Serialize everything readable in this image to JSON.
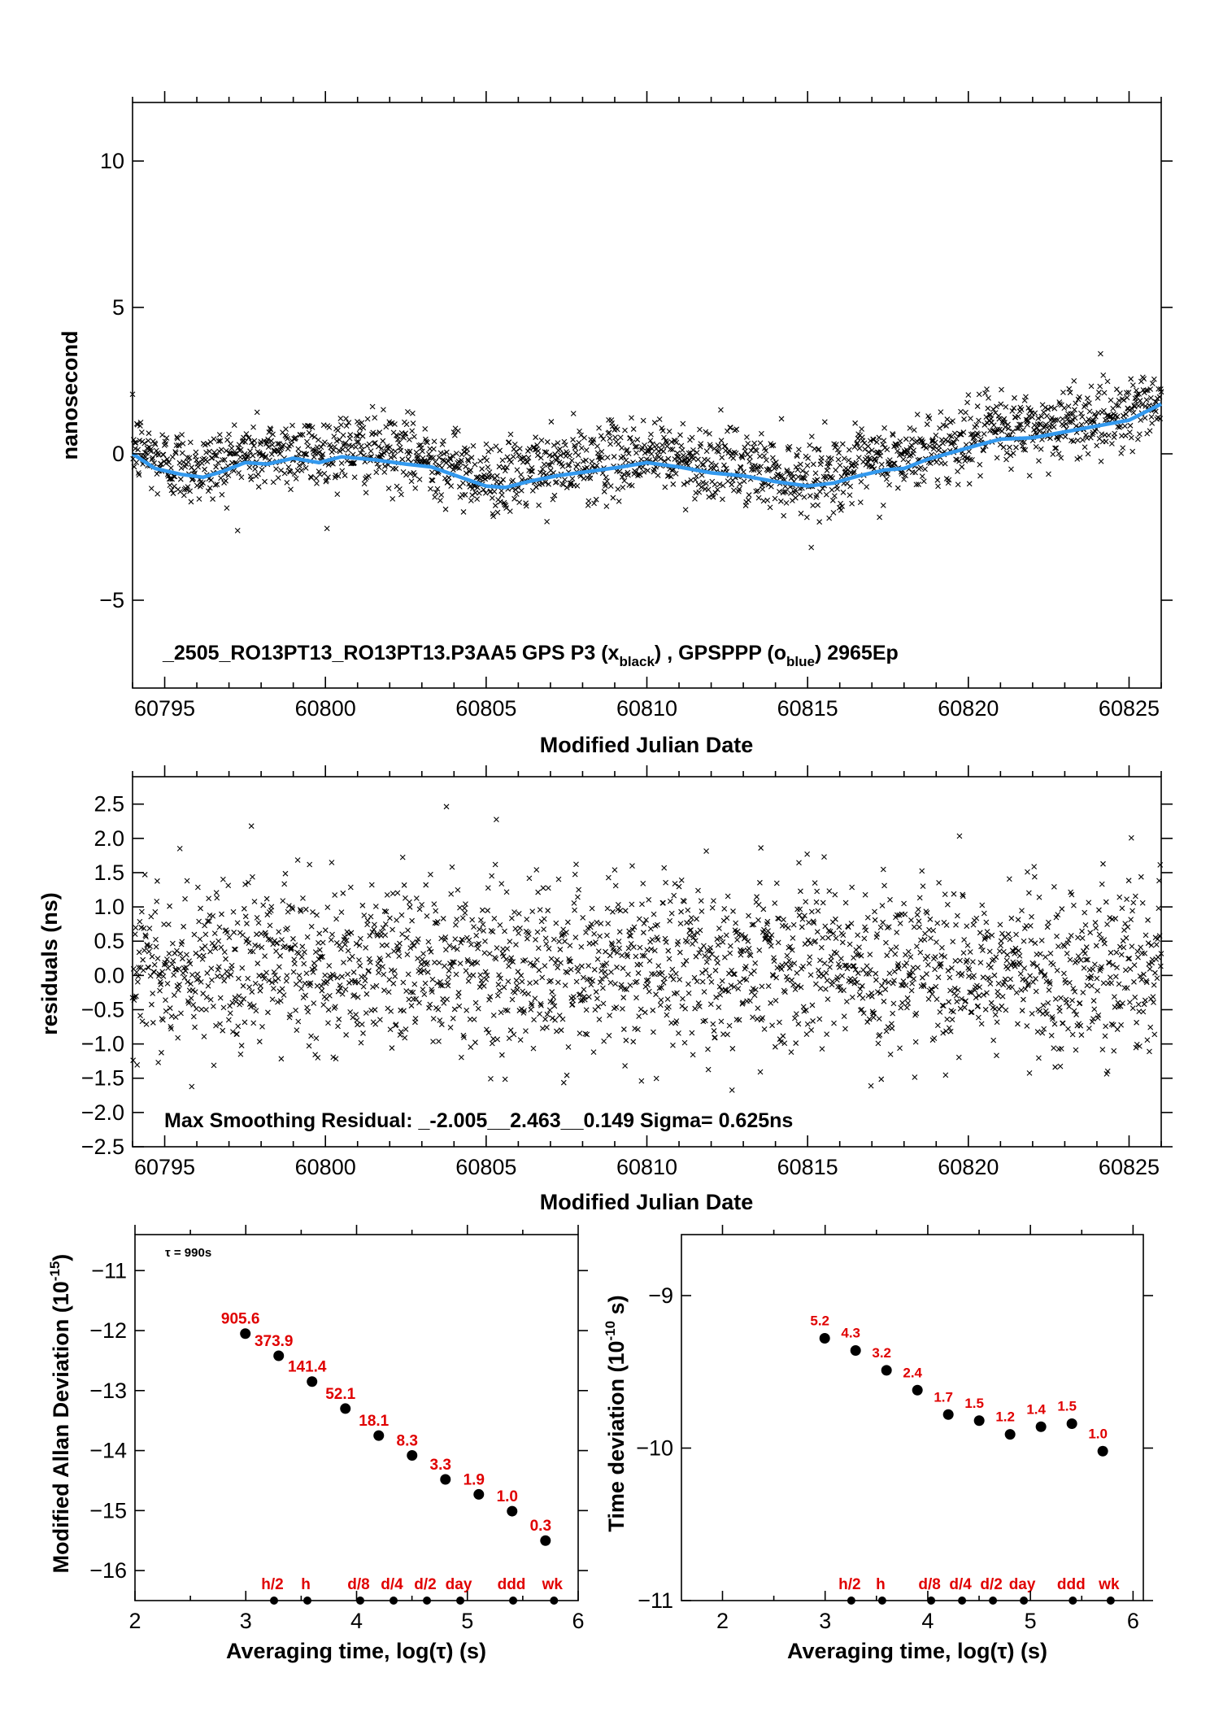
{
  "chart_data": [
    {
      "id": "phase",
      "type": "scatter",
      "title": "_2505_RO13PT13_RO13PT13.P3AA5    GPS P3 (x_black) ,  GPSPPP (o_blue)  2965Ep",
      "title_parts": {
        "main": "_2505_RO13PT13_RO13PT13.P3AA5    GPS P3 (x",
        "sub1": "black",
        "mid": ") ,  GPSPPP (o",
        "sub2": "blue",
        "end": ")  2965Ep"
      },
      "xlabel": "Modified Julian Date",
      "ylabel": "nanosecond",
      "xlim": [
        60794,
        60826
      ],
      "ylim": [
        -8,
        12
      ],
      "xticks": [
        60795,
        60800,
        60805,
        60810,
        60815,
        60820,
        60825
      ],
      "yticks": [
        -5,
        0,
        5,
        10
      ],
      "series": [
        {
          "name": "GPS P3",
          "color": "#000000",
          "marker": "x",
          "count": 2965,
          "spread_sigma": 0.625
        },
        {
          "name": "GPSPPP",
          "color": "#3399ee",
          "x": [
            60794.0,
            60794.7,
            60795.5,
            60796.2,
            60796.8,
            60797.5,
            60798.2,
            60799.0,
            60799.8,
            60800.5,
            60801.5,
            60802.5,
            60803.3,
            60804.2,
            60805.0,
            60805.6,
            60806.3,
            60807.2,
            60808.2,
            60809.2,
            60810.0,
            60811.0,
            60812.0,
            60813.0,
            60814.0,
            60815.0,
            60815.8,
            60816.6,
            60817.4,
            60818.0,
            60818.7,
            60819.5,
            60820.3,
            60821.0,
            60822.0,
            60823.0,
            60824.0,
            60825.0,
            60826.0
          ],
          "values": [
            0.0,
            -0.5,
            -0.7,
            -0.8,
            -0.6,
            -0.3,
            -0.35,
            -0.15,
            -0.3,
            -0.1,
            -0.2,
            -0.35,
            -0.45,
            -0.8,
            -1.1,
            -1.15,
            -0.95,
            -0.75,
            -0.6,
            -0.45,
            -0.3,
            -0.45,
            -0.65,
            -0.75,
            -0.95,
            -1.1,
            -1.0,
            -0.75,
            -0.55,
            -0.5,
            -0.2,
            0.05,
            0.3,
            0.5,
            0.55,
            0.75,
            0.95,
            1.15,
            1.7
          ]
        }
      ]
    },
    {
      "id": "residuals",
      "type": "scatter",
      "xlabel": "Modified Julian Date",
      "ylabel": "residuals (ns)",
      "xlim": [
        60794,
        60826
      ],
      "ylim": [
        -2.5,
        2.9
      ],
      "xticks": [
        60795,
        60800,
        60805,
        60810,
        60815,
        60820,
        60825
      ],
      "yticks": [
        -2.5,
        -2.0,
        -1.5,
        -1.0,
        -0.5,
        0.0,
        0.5,
        1.0,
        1.5,
        2.0,
        2.5
      ],
      "ytick_labels": [
        "−2.5",
        "−2.0",
        "−1.5",
        "−1.0",
        "−0.5",
        "0.0",
        "0.5",
        "1.0",
        "1.5",
        "2.0",
        "2.5"
      ],
      "annotation": "Max Smoothing Residual: _-2.005__2.463__0.149  Sigma= 0.625ns",
      "series": [
        {
          "name": "residuals",
          "color": "#000000",
          "marker": "x",
          "min": -2.005,
          "max": 2.463,
          "sigma": 0.625
        }
      ]
    },
    {
      "id": "mdev",
      "type": "scatter",
      "xlabel": "Averaging time, log(τ) (s)",
      "ylabel": "Modified Allan Deviation (10⁻¹⁵)",
      "ylabel_parts": {
        "main": "Modified Allan Deviation (10",
        "sup": "-15",
        "end": ")"
      },
      "xlim": [
        2,
        6
      ],
      "ylim": [
        -16.5,
        -10.4
      ],
      "xticks": [
        2,
        3,
        4,
        5,
        6
      ],
      "yticks": [
        -16,
        -15,
        -14,
        -13,
        -12,
        -11
      ],
      "ytick_labels": [
        "−16",
        "−15",
        "−14",
        "−13",
        "−12",
        "−11"
      ],
      "annotation": "τ = 990s",
      "x": [
        2.996,
        3.297,
        3.598,
        3.899,
        4.2,
        4.501,
        4.802,
        5.103,
        5.404,
        5.705
      ],
      "values": [
        -12.05,
        -12.42,
        -12.85,
        -13.3,
        -13.75,
        -14.08,
        -14.48,
        -14.73,
        -15.01,
        -15.5
      ],
      "point_labels": [
        "905.6",
        "373.9",
        "141.4",
        "52.1",
        "18.1",
        "8.3",
        "3.3",
        "1.9",
        "1.0",
        "0.3"
      ],
      "markers": [
        {
          "label": "h/2",
          "x": 3.255
        },
        {
          "label": "h",
          "x": 3.556
        },
        {
          "label": "d/8",
          "x": 4.033
        },
        {
          "label": "d/4",
          "x": 4.334
        },
        {
          "label": "d/2",
          "x": 4.635
        },
        {
          "label": "day",
          "x": 4.936
        },
        {
          "label": "ddd",
          "x": 5.413
        },
        {
          "label": "wk",
          "x": 5.782
        }
      ]
    },
    {
      "id": "tdev",
      "type": "scatter",
      "xlabel": "Averaging time, log(τ) (s)",
      "ylabel": "Time deviation (10⁻¹⁰ s)",
      "ylabel_parts": {
        "main": "Time deviation (10",
        "sup": "-10",
        "end": " s)"
      },
      "xlim": [
        1.6,
        6.1
      ],
      "ylim": [
        -11.0,
        -8.6
      ],
      "xticks": [
        2,
        3,
        4,
        5,
        6
      ],
      "yticks": [
        -11,
        -10,
        -9
      ],
      "ytick_labels": [
        "−11",
        "−10",
        "−9"
      ],
      "x": [
        2.996,
        3.297,
        3.598,
        3.899,
        4.2,
        4.501,
        4.802,
        5.103,
        5.404,
        5.705
      ],
      "values": [
        -9.28,
        -9.36,
        -9.49,
        -9.62,
        -9.78,
        -9.82,
        -9.91,
        -9.86,
        -9.84,
        -10.02
      ],
      "point_labels": [
        "5.2",
        "4.3",
        "3.2",
        "2.4",
        "1.7",
        "1.5",
        "1.2",
        "1.4",
        "1.5",
        "1.0"
      ],
      "markers": [
        {
          "label": "h/2",
          "x": 3.255
        },
        {
          "label": "h",
          "x": 3.556
        },
        {
          "label": "d/8",
          "x": 4.033
        },
        {
          "label": "d/4",
          "x": 4.334
        },
        {
          "label": "d/2",
          "x": 4.635
        },
        {
          "label": "day",
          "x": 4.936
        },
        {
          "label": "ddd",
          "x": 5.413
        },
        {
          "label": "wk",
          "x": 5.782
        }
      ]
    }
  ],
  "colors": {
    "scatter": "#000000",
    "smooth": "#3399ee",
    "labels": "#e00000"
  }
}
